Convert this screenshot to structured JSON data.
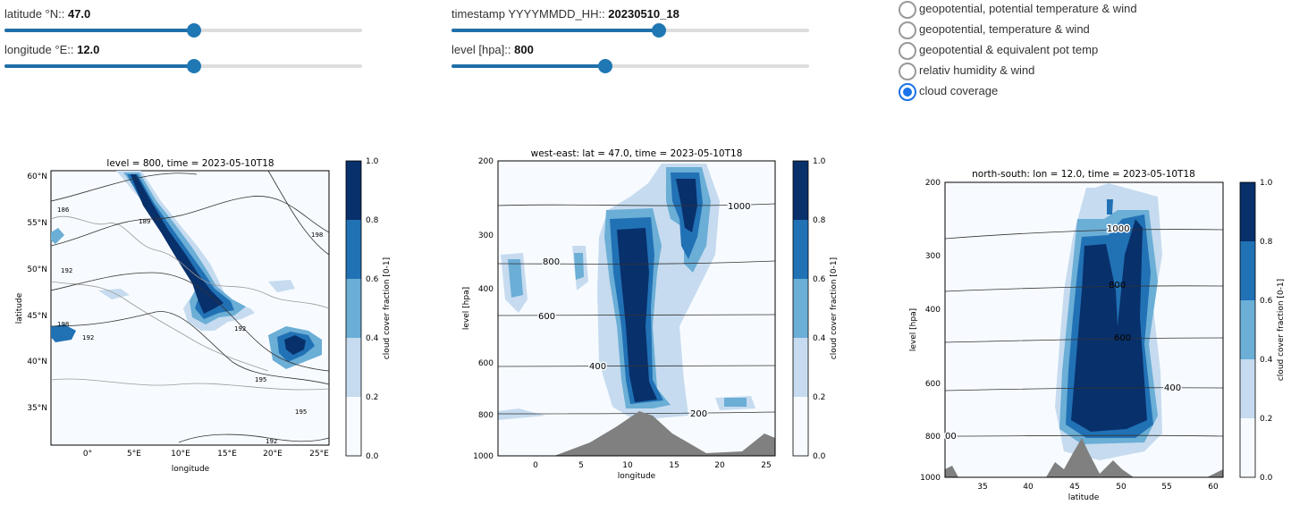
{
  "controls": {
    "latitude": {
      "label": "latitude °N:: ",
      "value": "47.0",
      "fraction": 0.53
    },
    "longitude": {
      "label": "longitude °E:: ",
      "value": "12.0",
      "fraction": 0.53
    },
    "timestamp": {
      "label": "timestamp YYYYMMDD_HH:: ",
      "value": "20230510_18",
      "fraction": 0.58
    },
    "level": {
      "label": "level [hpa]:: ",
      "value": "800",
      "fraction": 0.43
    }
  },
  "plot_types": [
    {
      "label": "geopotential, potential temperature & wind",
      "selected": false
    },
    {
      "label": "geopotential, temperature & wind",
      "selected": false
    },
    {
      "label": "geopotential & equivalent pot temp",
      "selected": false
    },
    {
      "label": "relativ humidity & wind",
      "selected": false
    },
    {
      "label": "cloud coverage",
      "selected": true
    }
  ],
  "colors": {
    "accent": "#1f77b4",
    "c1": "#f7fbff",
    "c2": "#c6dbef",
    "c3": "#6baed6",
    "c4": "#2171b5",
    "c5": "#08306b",
    "terrain": "#808080"
  },
  "colorbar": {
    "label": "cloud cover fraction [0-1]",
    "ticks": [
      "0.0",
      "0.2",
      "0.4",
      "0.6",
      "0.8",
      "1.0"
    ]
  },
  "chart_data": [
    {
      "type": "heatmap",
      "title": "level = 800, time = 2023-05-10T18",
      "xlabel": "longitude",
      "ylabel": "latitude",
      "xticks": [
        "0°",
        "5°E",
        "10°E",
        "15°E",
        "20°E",
        "25°E"
      ],
      "yticks": [
        "35°N",
        "40°N",
        "45°N",
        "50°N",
        "55°N",
        "60°N"
      ],
      "xlim": [
        -4,
        26
      ],
      "ylim": [
        31,
        61
      ],
      "contour_labels": [
        "186",
        "189",
        "192",
        "198",
        "192",
        "198",
        "192",
        "195",
        "195",
        "192"
      ]
    },
    {
      "type": "heatmap",
      "title": "west-east: lat = 47.0, time = 2023-05-10T18",
      "xlabel": "longitude",
      "ylabel": "level [hpa]",
      "xticks": [
        "0",
        "5",
        "10",
        "15",
        "20",
        "25"
      ],
      "yticks": [
        "200",
        "300",
        "400",
        "600",
        "800",
        "1000"
      ],
      "xlim": [
        -4,
        26
      ],
      "ylim": [
        1000,
        200
      ],
      "contour_labels": [
        "1000",
        "800",
        "600",
        "400",
        "200"
      ]
    },
    {
      "type": "heatmap",
      "title": "north-south: lon = 12.0, time = 2023-05-10T18",
      "xlabel": "latitude",
      "ylabel": "level [hpa]",
      "xticks": [
        "35",
        "40",
        "45",
        "50",
        "55",
        "60"
      ],
      "yticks": [
        "200",
        "300",
        "400",
        "600",
        "800",
        "1000"
      ],
      "xlim": [
        31,
        61
      ],
      "ylim": [
        1000,
        200
      ],
      "contour_labels": [
        "1000",
        "800",
        "600",
        "400",
        "00"
      ]
    }
  ]
}
